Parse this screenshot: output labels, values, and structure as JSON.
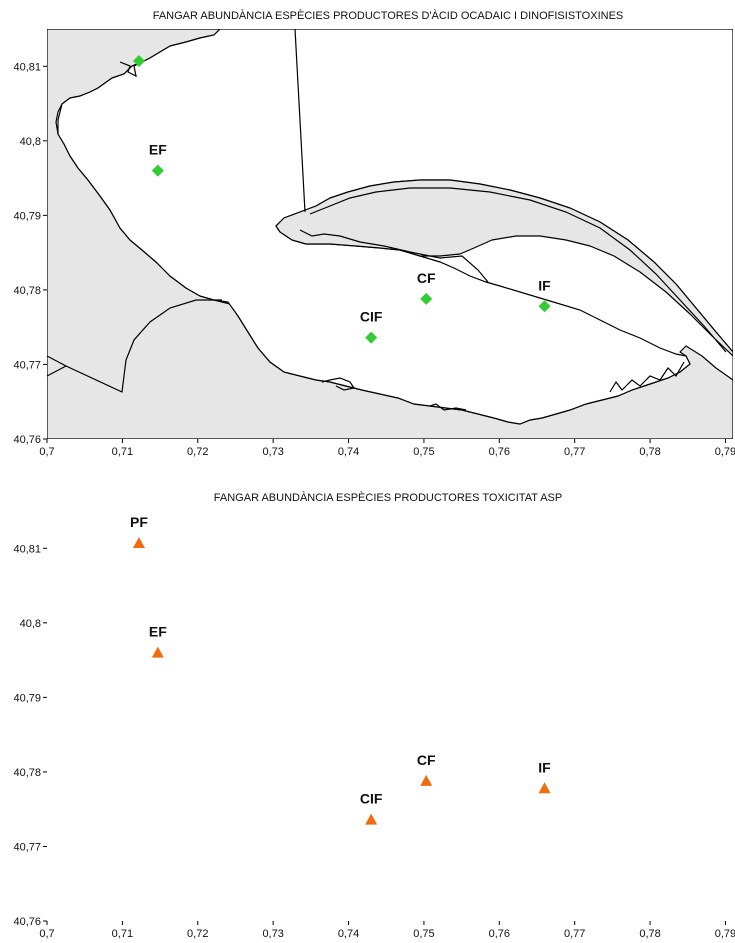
{
  "panels": [
    {
      "title": "FANGAR ABUNDÀNCIA ESPÈCIES PRODUCTORES  D'ÀCID OCADAIC I DINOFISISTOXINES",
      "marker": "diamond",
      "marker_color": "#33cc33",
      "stations": [
        {
          "label": "",
          "lon": 0.7122,
          "lat": 40.8107
        },
        {
          "label": "EF",
          "lon": 0.7147,
          "lat": 40.796
        },
        {
          "label": "CF",
          "lon": 0.7503,
          "lat": 40.7788
        },
        {
          "label": "IF",
          "lon": 0.766,
          "lat": 40.7778
        },
        {
          "label": "CIF",
          "lon": 0.743,
          "lat": 40.7736
        }
      ]
    },
    {
      "title": "FANGAR ABUNDÀNCIA ESPÈCIES PRODUCTORES TOXICITAT ASP",
      "marker": "triangle",
      "marker_color": "#f26b0f",
      "stations": [
        {
          "label": "PF",
          "lon": 0.7122,
          "lat": 40.8107
        },
        {
          "label": "EF",
          "lon": 0.7147,
          "lat": 40.796
        },
        {
          "label": "CF",
          "lon": 0.7503,
          "lat": 40.7788
        },
        {
          "label": "IF",
          "lon": 0.766,
          "lat": 40.7778
        },
        {
          "label": "CIF",
          "lon": 0.743,
          "lat": 40.7736
        }
      ]
    }
  ],
  "axes": {
    "x_ticks": [
      "0,7",
      "0,71",
      "0,72",
      "0,73",
      "0,74",
      "0,75",
      "0,76",
      "0,77",
      "0,78",
      "0,79"
    ],
    "y_ticks": [
      "40,81",
      "40,8",
      "40,79",
      "40,78",
      "40,77",
      "40,76"
    ],
    "x_range": [
      0.7,
      0.791
    ],
    "y_range": [
      40.76,
      40.815
    ]
  },
  "colors": {
    "land": "#e6e6e6",
    "water": "#ffffff",
    "coastline": "#000000"
  }
}
